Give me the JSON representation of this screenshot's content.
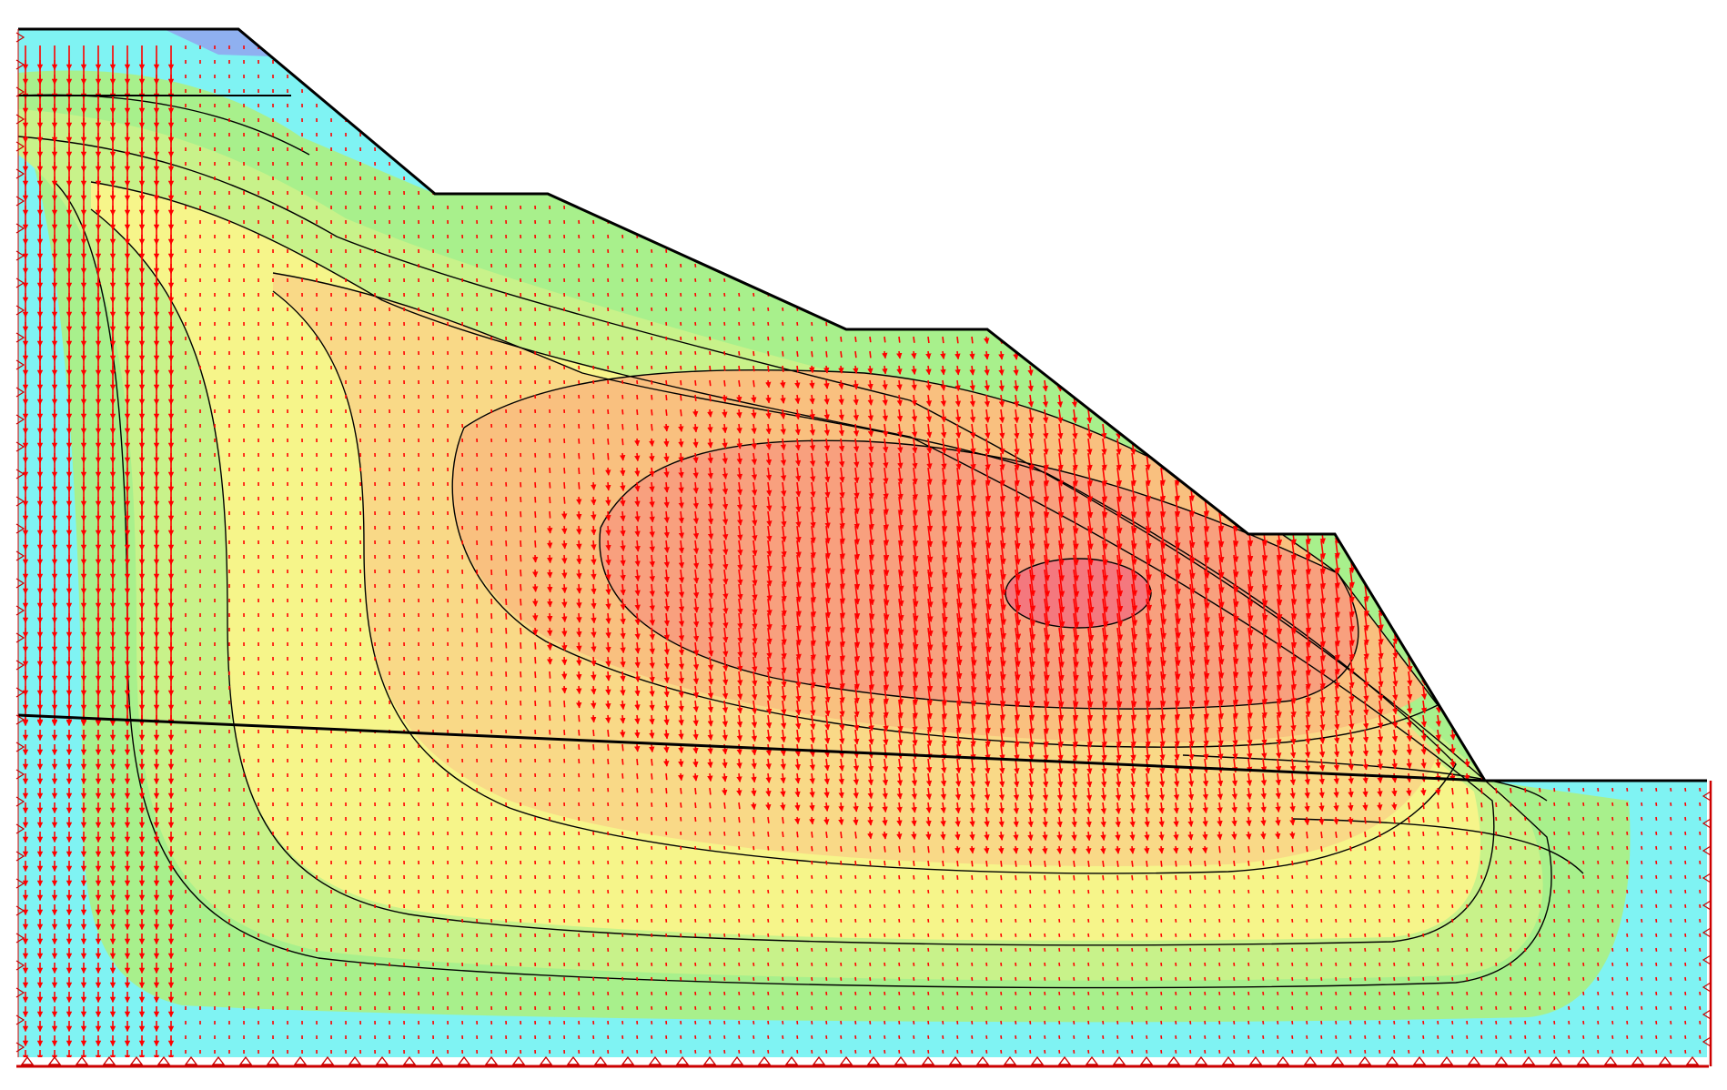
{
  "diagram": {
    "kind": "slope-stability finite-element displacement contour plot with vector arrows",
    "colors": {
      "background": "#ffffff",
      "contour_low": "#7ff3f3",
      "contour_mid_low": "#a8f08c",
      "contour_mid": "#f6f58a",
      "contour_mid_high": "#f9c98a",
      "contour_high": "#f8a07e",
      "contour_peak": "#f4787e",
      "top_left_tint": "#8fb0f0",
      "outline": "#000000",
      "vectors": "#ff0000",
      "boundary_supports": "#cc0000"
    },
    "icons": {
      "vector_arrow": "arrow-icon",
      "fixed_support": "pin-support-icon",
      "roller_support": "roller-support-icon"
    },
    "labels": []
  }
}
